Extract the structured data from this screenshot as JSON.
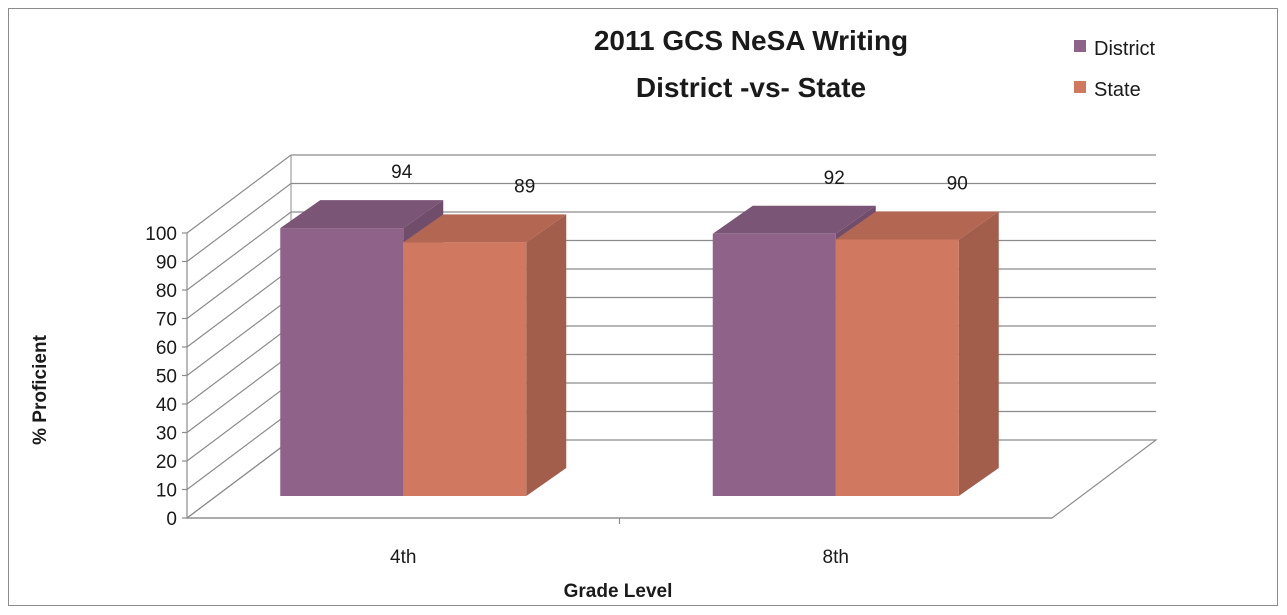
{
  "chart_data": {
    "type": "bar",
    "title_lines": [
      "2011 GCS NeSA Writing",
      "District -vs- State"
    ],
    "xlabel": "Grade Level",
    "ylabel": "% Proficient",
    "categories": [
      "4th",
      "8th"
    ],
    "series": [
      {
        "name": "District",
        "values": [
          94,
          92
        ],
        "color": "#8f6389"
      },
      {
        "name": "State",
        "values": [
          89,
          90
        ],
        "color": "#d07860"
      }
    ],
    "ylim": [
      0,
      100
    ],
    "yticks": [
      0,
      10,
      20,
      30,
      40,
      50,
      60,
      70,
      80,
      90,
      100
    ],
    "grid": true,
    "style": "3d-clustered-column",
    "legend_position": "top-right"
  }
}
